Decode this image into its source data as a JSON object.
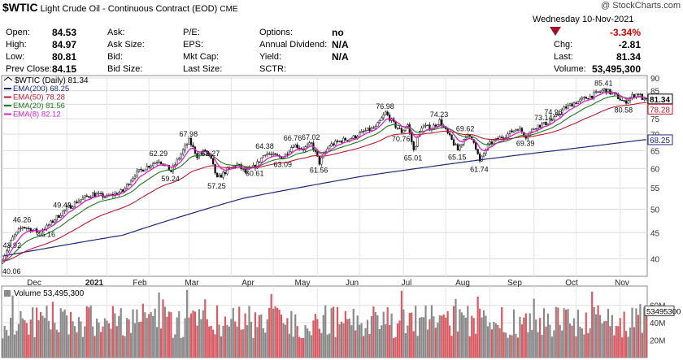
{
  "header": {
    "symbol": "$WTIC",
    "description": "Light Crude Oil - Continuous Contract (EOD)",
    "exchange": "CME",
    "watermark": "@ StockCharts.com",
    "date_label": "Wednesday  10-Nov-2021",
    "change_pct": "-3.34%",
    "quote_left": [
      {
        "label": "Open:",
        "value": "84.53"
      },
      {
        "label": "High:",
        "value": "84.97"
      },
      {
        "label": "Low:",
        "value": "80.81"
      },
      {
        "label": "Prev Close:",
        "value": "84.15"
      }
    ],
    "quote_col2": [
      "Ask:",
      "Ask Size:",
      "Bid:",
      "Bid Size:"
    ],
    "quote_col3": [
      "P/E:",
      "EPS:",
      "Mkt Cap:",
      "Last Size:"
    ],
    "quote_col4": [
      {
        "label": "Options:",
        "value": "no"
      },
      {
        "label": "Annual Dividend:",
        "value": "N/A"
      },
      {
        "label": "Yield:",
        "value": "N/A"
      },
      {
        "label": "SCTR:",
        "value": ""
      }
    ],
    "quote_right": [
      {
        "label": "Chg:",
        "value": "-2.81"
      },
      {
        "label": "Last:",
        "value": "81.34"
      },
      {
        "label": "Volume:",
        "value": "53,495,300"
      }
    ]
  },
  "chart_data": [
    {
      "type": "candlestick",
      "title": "$WTIC (Daily) 81.34",
      "legend": [
        {
          "label": "EMA(200) 68.25",
          "color": "#1f2a7a"
        },
        {
          "label": "EMA(50) 78.28",
          "color": "#c0182f"
        },
        {
          "label": "EMA(20) 81.56",
          "color": "#1e7b1e"
        },
        {
          "label": "EMA(8) 82.12",
          "color": "#e020c8"
        }
      ],
      "x_labels": [
        "Dec",
        "2021",
        "Feb",
        "Mar",
        "Apr",
        "May",
        "Jun",
        "Jul",
        "Aug",
        "Sep",
        "Oct",
        "Nov"
      ],
      "y_ticks": [
        40,
        45,
        50,
        55,
        60,
        65,
        70,
        75,
        80,
        85,
        90
      ],
      "ylim": [
        37,
        91
      ],
      "y_scale": "log",
      "price_path": [
        [
          0,
          40.06
        ],
        [
          5,
          43.92
        ],
        [
          10,
          46.26
        ],
        [
          17,
          45.2
        ],
        [
          22,
          46.16
        ],
        [
          30,
          49.43
        ],
        [
          38,
          52.0
        ],
        [
          45,
          53.5
        ],
        [
          52,
          52.8
        ],
        [
          60,
          54.2
        ],
        [
          66,
          58.5
        ],
        [
          72,
          60.5
        ],
        [
          78,
          62.29
        ],
        [
          84,
          59.24
        ],
        [
          89,
          64.0
        ],
        [
          93,
          67.98
        ],
        [
          97,
          63.5
        ],
        [
          101,
          65.0
        ],
        [
          104,
          62.27
        ],
        [
          107,
          57.25
        ],
        [
          112,
          59.5
        ],
        [
          117,
          61.0
        ],
        [
          121,
          59.0
        ],
        [
          126,
          60.61
        ],
        [
          131,
          64.38
        ],
        [
          135,
          63.5
        ],
        [
          140,
          63.09
        ],
        [
          145,
          66.76
        ],
        [
          150,
          65.5
        ],
        [
          154,
          67.02
        ],
        [
          158,
          61.56
        ],
        [
          163,
          66.5
        ],
        [
          169,
          68.0
        ],
        [
          175,
          69.0
        ],
        [
          181,
          71.0
        ],
        [
          186,
          72.0
        ],
        [
          191,
          76.98
        ],
        [
          196,
          72.5
        ],
        [
          199,
          70.76
        ],
        [
          202,
          73.0
        ],
        [
          205,
          65.01
        ],
        [
          209,
          72.5
        ],
        [
          214,
          72.0
        ],
        [
          218,
          74.23
        ],
        [
          222,
          70.0
        ],
        [
          227,
          65.15
        ],
        [
          231,
          69.62
        ],
        [
          235,
          68.0
        ],
        [
          238,
          61.74
        ],
        [
          242,
          66.5
        ],
        [
          247,
          68.5
        ],
        [
          252,
          70.0
        ],
        [
          257,
          72.0
        ],
        [
          261,
          69.39
        ],
        [
          266,
          72.5
        ],
        [
          270,
          73.14
        ],
        [
          275,
          74.96
        ],
        [
          280,
          78.5
        ],
        [
          285,
          80.5
        ],
        [
          290,
          82.0
        ],
        [
          295,
          83.5
        ],
        [
          300,
          85.41
        ],
        [
          304,
          84.0
        ],
        [
          307,
          82.5
        ],
        [
          310,
          80.58
        ],
        [
          314,
          83.0
        ],
        [
          317,
          84.0
        ],
        [
          320,
          81.34
        ]
      ],
      "price_annotations": [
        {
          "text": "40.06",
          "price": 40.06
        },
        {
          "text": "43.92",
          "price": 43.92
        },
        {
          "text": "46.26",
          "price": 46.26
        },
        {
          "text": "46.16",
          "price": 46.16
        },
        {
          "text": "49.43",
          "price": 49.43
        },
        {
          "text": "62.29",
          "price": 62.29
        },
        {
          "text": "59.24",
          "price": 59.24
        },
        {
          "text": "67.98",
          "price": 67.98
        },
        {
          "text": "62.27",
          "price": 62.27
        },
        {
          "text": "57.25",
          "price": 57.25
        },
        {
          "text": "60.61",
          "price": 60.61
        },
        {
          "text": "64.38",
          "price": 64.38
        },
        {
          "text": "63.09",
          "price": 63.09
        },
        {
          "text": "66.76",
          "price": 66.76
        },
        {
          "text": "67.02",
          "price": 67.02
        },
        {
          "text": "61.56",
          "price": 61.56
        },
        {
          "text": "76.98",
          "price": 76.98
        },
        {
          "text": "70.76",
          "price": 70.76
        },
        {
          "text": "65.01",
          "price": 65.01
        },
        {
          "text": "74.23",
          "price": 74.23
        },
        {
          "text": "65.15",
          "price": 65.15
        },
        {
          "text": "69.62",
          "price": 69.62
        },
        {
          "text": "61.74",
          "price": 61.74
        },
        {
          "text": "73.14",
          "price": 73.14
        },
        {
          "text": "69.39",
          "price": 69.39
        },
        {
          "text": "74.96",
          "price": 74.96
        },
        {
          "text": "80.58",
          "price": 80.58
        },
        {
          "text": "85.41",
          "price": 85.41
        }
      ],
      "right_tags": [
        {
          "text": "81.34",
          "value": 81.34,
          "color": "#000000"
        },
        {
          "text": "78.28",
          "value": 78.28,
          "color": "#c0182f"
        },
        {
          "text": "68.25",
          "value": 68.25,
          "color": "#1f2a7a"
        }
      ],
      "ema200_path": [
        [
          0,
          40.5
        ],
        [
          60,
          44.5
        ],
        [
          120,
          52.5
        ],
        [
          180,
          58.0
        ],
        [
          240,
          62.5
        ],
        [
          290,
          66.0
        ],
        [
          320,
          68.25
        ]
      ]
    },
    {
      "type": "bar",
      "title": "Volume 53,495,300",
      "y_ticks": [
        "60M",
        "40M",
        "20M"
      ],
      "y_tick_values": [
        60,
        40,
        20
      ],
      "ylim": [
        0,
        82
      ],
      "right_tag": "53495300",
      "last_value_millions": 53.5
    }
  ]
}
